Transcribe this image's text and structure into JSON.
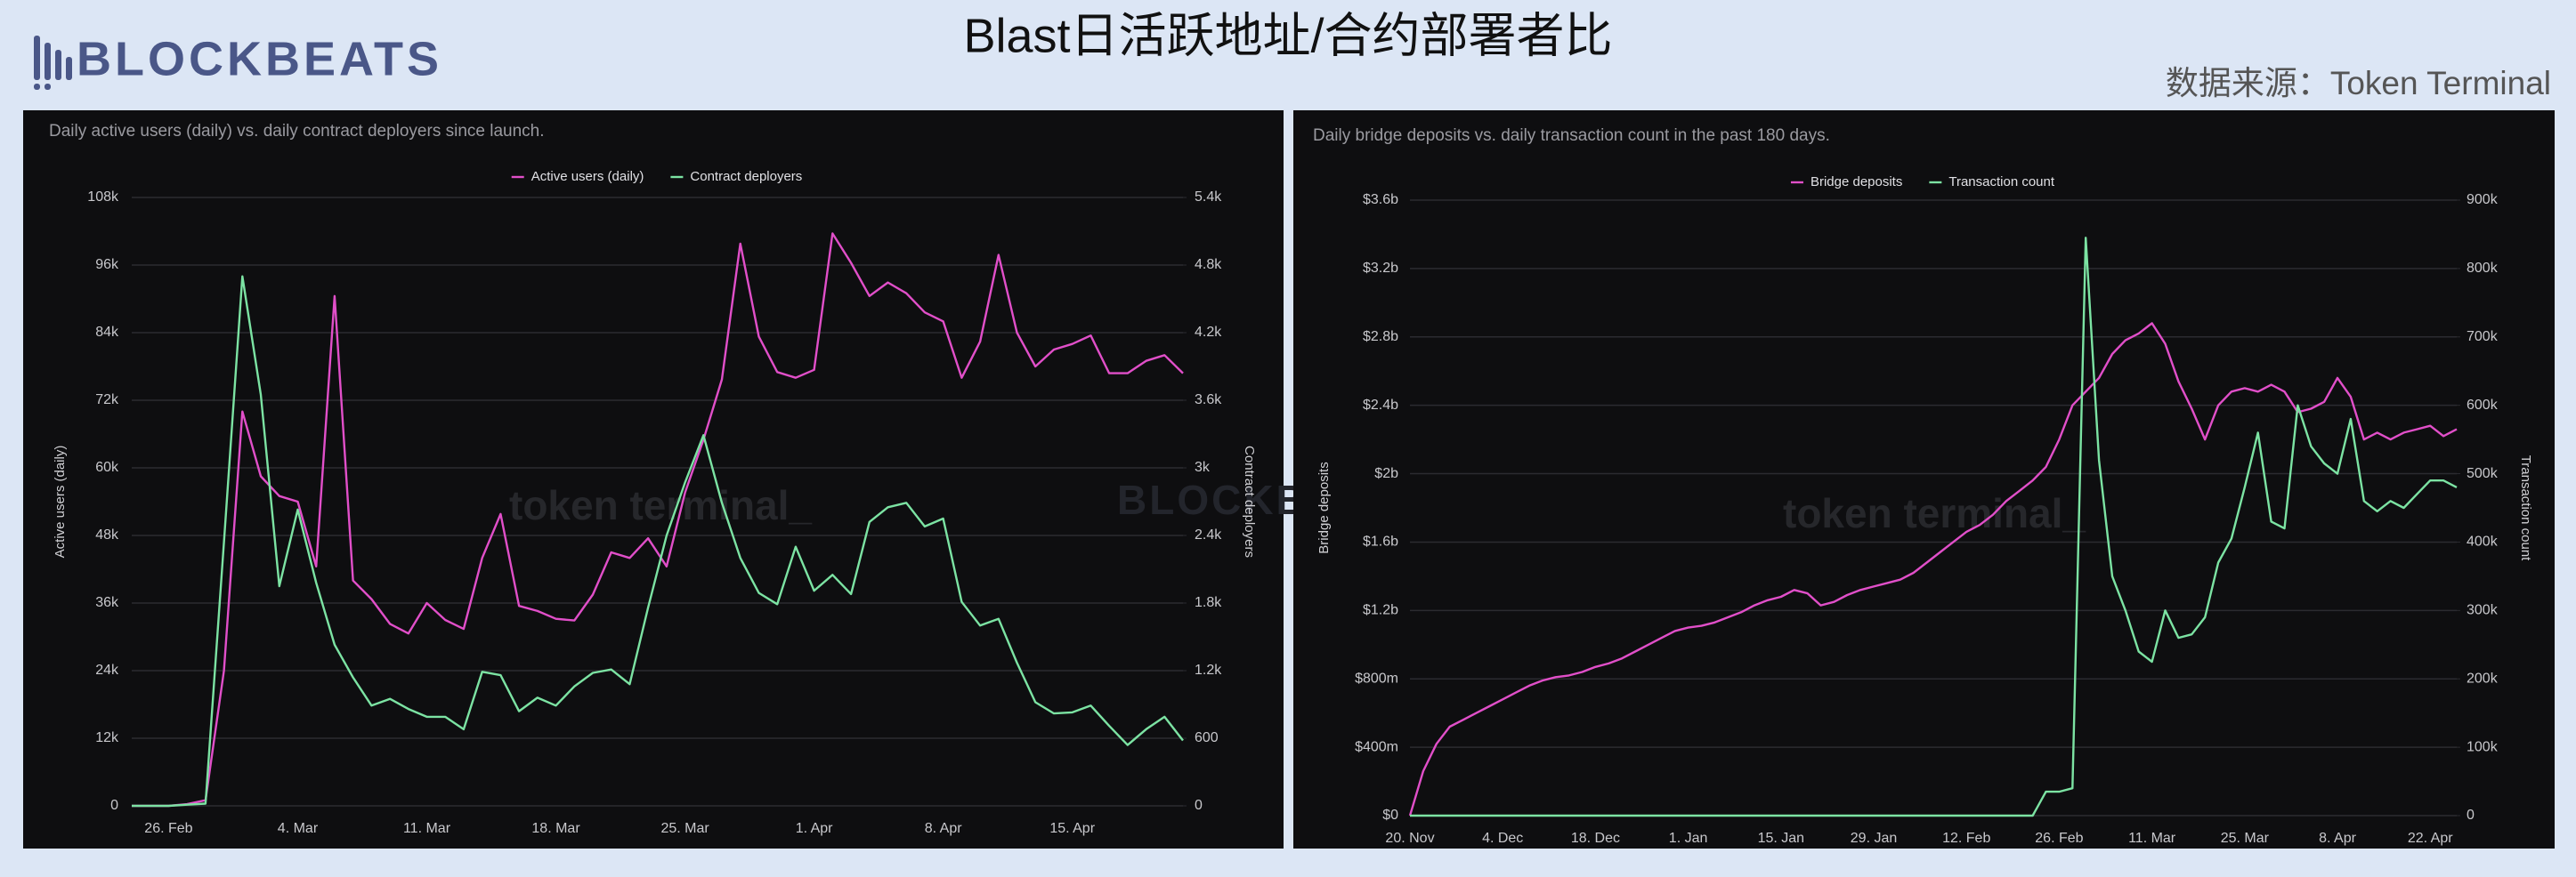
{
  "header": {
    "logo": "BLOCKBEATS",
    "title": "Blast日活跃地址/合约部署者比",
    "source": "数据来源：Token Terminal"
  },
  "chart_data": [
    {
      "type": "line",
      "title": "Daily active users (daily) vs. daily contract deployers since launch.",
      "watermark": "token terminal_",
      "ylabel": "Active users (daily)",
      "y2label": "Contract deployers",
      "legend": "top",
      "grid": true,
      "categories": [
        null,
        null,
        "26. Feb",
        null,
        null,
        null,
        null,
        null,
        null,
        "4. Mar",
        null,
        null,
        null,
        null,
        null,
        null,
        "11. Mar",
        null,
        null,
        null,
        null,
        null,
        null,
        "18. Mar",
        null,
        null,
        null,
        null,
        null,
        null,
        "25. Mar",
        null,
        null,
        null,
        null,
        null,
        null,
        "1. Apr",
        null,
        null,
        null,
        null,
        null,
        null,
        "8. Apr",
        null,
        null,
        null,
        null,
        null,
        null,
        "15. Apr",
        null,
        null,
        null,
        null,
        null,
        null
      ],
      "ylim": [
        0,
        108000
      ],
      "yticks": [
        0,
        {
          "value": 12000,
          "label": "12k"
        },
        {
          "value": 24000,
          "label": "24k"
        },
        {
          "value": 36000,
          "label": "36k"
        },
        {
          "value": 48000,
          "label": "48k"
        },
        {
          "value": 60000,
          "label": "60k"
        },
        {
          "value": 72000,
          "label": "72k"
        },
        {
          "value": 84000,
          "label": "84k"
        },
        {
          "value": 96000,
          "label": "96k"
        },
        {
          "value": 108000,
          "label": "108k"
        }
      ],
      "y2lim": [
        0,
        5400
      ],
      "y2ticks": [
        0,
        600,
        {
          "value": 1200,
          "label": "1.2k"
        },
        {
          "value": 1800,
          "label": "1.8k"
        },
        {
          "value": 2400,
          "label": "2.4k"
        },
        {
          "value": 3000,
          "label": "3k"
        },
        {
          "value": 3600,
          "label": "3.6k"
        },
        {
          "value": 4200,
          "label": "4.2k"
        },
        {
          "value": 4800,
          "label": "4.8k"
        },
        {
          "value": 5400,
          "label": "5.4k"
        }
      ],
      "series": [
        {
          "name": "Active users (daily)",
          "color": "#e14fc9",
          "values": [
            0,
            0,
            0,
            300,
            1000,
            24000,
            70000,
            58500,
            55000,
            54000,
            42500,
            90500,
            40000,
            36700,
            32300,
            30600,
            36000,
            33000,
            31400,
            44000,
            51800,
            35500,
            34600,
            33200,
            32900,
            37500,
            45000,
            44000,
            47500,
            42500,
            55600,
            65000,
            75700,
            99800,
            83300,
            77000,
            76000,
            77400,
            101600,
            96400,
            90500,
            92900,
            91000,
            87600,
            86000,
            76000,
            82400,
            97800,
            84000,
            78000,
            81000,
            82000,
            83500,
            76800,
            76800,
            79000,
            80000,
            76800
          ]
        },
        {
          "name": "Contract deployers",
          "color": "#7ce3a3",
          "axis": "y2",
          "values": [
            0,
            0,
            0,
            10,
            20,
            2340,
            4700,
            3650,
            1950,
            2630,
            1980,
            1430,
            1140,
            890,
            950,
            860,
            790,
            790,
            680,
            1190,
            1160,
            840,
            960,
            890,
            1060,
            1180,
            1210,
            1080,
            1760,
            2400,
            2870,
            3290,
            2690,
            2200,
            1890,
            1790,
            2300,
            1910,
            2050,
            1880,
            2520,
            2650,
            2690,
            2480,
            2550,
            1810,
            1600,
            1660,
            1270,
            920,
            820,
            830,
            890,
            710,
            540,
            680,
            790,
            580
          ]
        }
      ]
    },
    {
      "type": "line",
      "title": "Daily bridge deposits vs. daily transaction count in the past 180 days.",
      "watermark": "token terminal_",
      "ylabel": "Bridge deposits",
      "y2label": "Transaction count",
      "legend": "top",
      "grid": true,
      "categories": [
        "20. Nov",
        null,
        null,
        null,
        null,
        null,
        null,
        "4. Dec",
        null,
        null,
        null,
        null,
        null,
        null,
        "18. Dec",
        null,
        null,
        null,
        null,
        null,
        null,
        "1. Jan",
        null,
        null,
        null,
        null,
        null,
        null,
        "15. Jan",
        null,
        null,
        null,
        null,
        null,
        null,
        "29. Jan",
        null,
        null,
        null,
        null,
        null,
        null,
        "12. Feb",
        null,
        null,
        null,
        null,
        null,
        null,
        "26. Feb",
        null,
        null,
        null,
        null,
        null,
        null,
        "11. Mar",
        null,
        null,
        null,
        null,
        null,
        null,
        "25. Mar",
        null,
        null,
        null,
        null,
        null,
        null,
        "8. Apr",
        null,
        null,
        null,
        null,
        null,
        null,
        "22. Apr",
        null,
        null
      ],
      "ylim": [
        0,
        3600000000
      ],
      "yticks": [
        {
          "value": 0,
          "label": "$0"
        },
        {
          "value": 400000000,
          "label": "$400m"
        },
        {
          "value": 800000000,
          "label": "$800m"
        },
        {
          "value": 1200000000,
          "label": "$1.2b"
        },
        {
          "value": 1600000000,
          "label": "$1.6b"
        },
        {
          "value": 2000000000,
          "label": "$2b"
        },
        {
          "value": 2400000000,
          "label": "$2.4b"
        },
        {
          "value": 2800000000,
          "label": "$2.8b"
        },
        {
          "value": 3200000000,
          "label": "$3.2b"
        },
        {
          "value": 3600000000,
          "label": "$3.6b"
        }
      ],
      "y2lim": [
        0,
        900000
      ],
      "y2ticks": [
        0,
        {
          "value": 100000,
          "label": "100k"
        },
        {
          "value": 200000,
          "label": "200k"
        },
        {
          "value": 300000,
          "label": "300k"
        },
        {
          "value": 400000,
          "label": "400k"
        },
        {
          "value": 500000,
          "label": "500k"
        },
        {
          "value": 600000,
          "label": "600k"
        },
        {
          "value": 700000,
          "label": "700k"
        },
        {
          "value": 800000,
          "label": "800k"
        },
        {
          "value": 900000,
          "label": "900k"
        }
      ],
      "series": [
        {
          "name": "Bridge deposits",
          "color": "#e14fc9",
          "values": [
            0,
            260000000,
            420000000,
            520000000,
            560000000,
            600000000,
            640000000,
            680000000,
            720000000,
            760000000,
            790000000,
            810000000,
            820000000,
            840000000,
            870000000,
            890000000,
            920000000,
            960000000,
            1000000000,
            1040000000,
            1080000000,
            1100000000,
            1110000000,
            1130000000,
            1160000000,
            1190000000,
            1230000000,
            1260000000,
            1280000000,
            1320000000,
            1300000000,
            1230000000,
            1250000000,
            1290000000,
            1320000000,
            1340000000,
            1360000000,
            1380000000,
            1420000000,
            1480000000,
            1540000000,
            1600000000,
            1660000000,
            1700000000,
            1760000000,
            1840000000,
            1900000000,
            1960000000,
            2040000000,
            2200000000,
            2400000000,
            2480000000,
            2560000000,
            2700000000,
            2780000000,
            2820000000,
            2880000000,
            2760000000,
            2540000000,
            2380000000,
            2200000000,
            2400000000,
            2480000000,
            2500000000,
            2480000000,
            2520000000,
            2480000000,
            2360000000,
            2380000000,
            2420000000,
            2560000000,
            2450000000,
            2200000000,
            2240000000,
            2200000000,
            2240000000,
            2260000000,
            2280000000,
            2220000000,
            2260000000
          ]
        },
        {
          "name": "Transaction count",
          "color": "#7ce3a3",
          "axis": "y2",
          "values": [
            0,
            0,
            0,
            0,
            0,
            0,
            0,
            0,
            0,
            0,
            0,
            0,
            0,
            0,
            0,
            0,
            0,
            0,
            0,
            0,
            0,
            0,
            0,
            0,
            0,
            0,
            0,
            0,
            0,
            0,
            0,
            0,
            0,
            0,
            0,
            0,
            0,
            0,
            0,
            0,
            0,
            0,
            0,
            0,
            0,
            0,
            0,
            0,
            35000,
            35000,
            40000,
            845000,
            520000,
            350000,
            300000,
            240000,
            225000,
            300000,
            260000,
            265000,
            290000,
            370000,
            405000,
            480000,
            560000,
            430000,
            420000,
            600000,
            540000,
            515000,
            500000,
            580000,
            460000,
            445000,
            460000,
            450000,
            470000,
            490000,
            490000,
            480000
          ]
        }
      ]
    }
  ]
}
